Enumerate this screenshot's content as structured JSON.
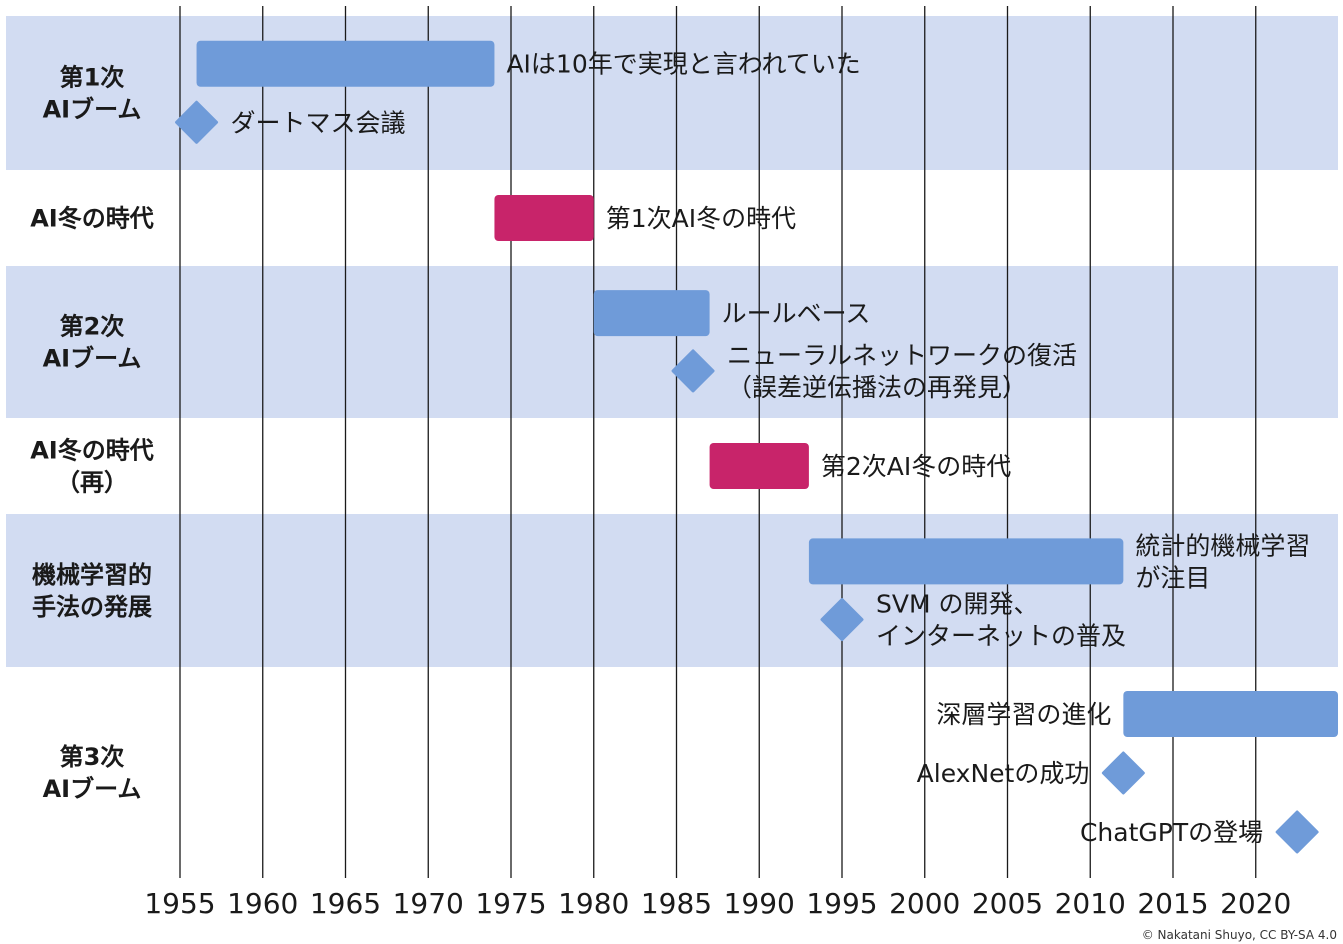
{
  "chart_data": {
    "type": "timeline",
    "x_ticks": [
      1955,
      1960,
      1965,
      1970,
      1975,
      1980,
      1985,
      1990,
      1995,
      2000,
      2005,
      2010,
      2015,
      2020
    ],
    "xlim": [
      1954.5,
      2023.5
    ],
    "grid": "vertical",
    "colors": {
      "band": "#d2dcf2",
      "era": "#6f9bd9",
      "winter": "#c8246a",
      "milestone": "#6f9bd9",
      "grid": "#1a1a1a"
    },
    "rows": [
      {
        "label": [
          "第1次",
          "AIブーム"
        ],
        "shaded": true,
        "items": [
          {
            "kind": "bar",
            "start": 1956,
            "end": 1974,
            "color": "era",
            "text": [
              "AIは10年で実現と言われていた"
            ],
            "text_side": "right"
          },
          {
            "kind": "milestone",
            "year": 1956,
            "text": [
              "ダートマス会議"
            ],
            "text_side": "right"
          }
        ]
      },
      {
        "label": [
          "AI冬の時代"
        ],
        "shaded": false,
        "items": [
          {
            "kind": "bar",
            "start": 1974,
            "end": 1980,
            "color": "winter",
            "text": [
              "第1次AI冬の時代"
            ],
            "text_side": "right"
          }
        ]
      },
      {
        "label": [
          "第2次",
          "AIブーム"
        ],
        "shaded": true,
        "items": [
          {
            "kind": "bar",
            "start": 1980,
            "end": 1987,
            "color": "era",
            "text": [
              "ルールベース"
            ],
            "text_side": "right"
          },
          {
            "kind": "milestone",
            "year": 1986,
            "text": [
              "ニューラルネットワークの復活",
              "（誤差逆伝播法の再発見）"
            ],
            "text_side": "right"
          }
        ]
      },
      {
        "label": [
          "AI冬の時代",
          "（再）"
        ],
        "shaded": false,
        "items": [
          {
            "kind": "bar",
            "start": 1987,
            "end": 1993,
            "color": "winter",
            "text": [
              "第2次AI冬の時代"
            ],
            "text_side": "right"
          }
        ]
      },
      {
        "label": [
          "機械学習的",
          "手法の発展"
        ],
        "shaded": true,
        "items": [
          {
            "kind": "bar",
            "start": 1993,
            "end": 2012,
            "color": "era",
            "text": [
              "統計的機械学習",
              "が注目"
            ],
            "text_side": "right"
          },
          {
            "kind": "milestone",
            "year": 1995,
            "text": [
              "SVM の開発、",
              "インターネットの普及"
            ],
            "text_side": "right"
          }
        ]
      },
      {
        "label": [
          "第3次",
          "AIブーム"
        ],
        "shaded": false,
        "items": [
          {
            "kind": "bar",
            "start": 2012,
            "end": 2025,
            "color": "era",
            "text": [
              "深層学習の進化"
            ],
            "text_side": "left"
          },
          {
            "kind": "milestone",
            "year": 2012,
            "text": [
              "AlexNetの成功"
            ],
            "text_side": "left"
          },
          {
            "kind": "milestone",
            "year": 2022.5,
            "text": [
              "ChatGPTの登場"
            ],
            "text_side": "left"
          }
        ]
      }
    ]
  },
  "credit": "© Nakatani Shuyo, CC BY-SA 4.0"
}
